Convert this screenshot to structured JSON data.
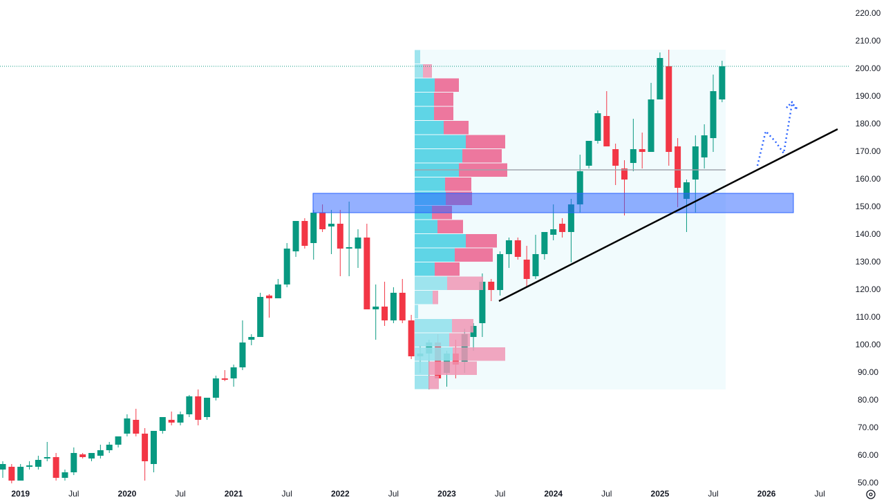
{
  "chart_data": {
    "type": "candlestick",
    "categories": [
      null,
      null,
      "2019",
      null,
      null,
      null,
      null,
      null,
      "Jul",
      null,
      null,
      null,
      null,
      null,
      "2020",
      null,
      null,
      null,
      null,
      null,
      "Jul",
      null,
      null,
      null,
      null,
      null,
      "2021",
      null,
      null,
      null,
      null,
      null,
      "Jul",
      null,
      null,
      null,
      null,
      null,
      "2022",
      null,
      null,
      null,
      null,
      null,
      "Jul",
      null,
      null,
      null,
      null,
      null,
      "2023",
      null,
      null,
      null,
      null,
      null,
      "Jul",
      null,
      null,
      null,
      null,
      null,
      "2024",
      null,
      null,
      null,
      null,
      null,
      "Jul",
      null,
      null,
      null,
      null,
      null,
      "2025",
      null,
      null,
      null,
      null,
      null,
      "Jul",
      null,
      null,
      null,
      null,
      null,
      "2026",
      null,
      null,
      null,
      null,
      null,
      "Jul",
      null,
      null
    ],
    "open": [
      55,
      56,
      51,
      56,
      56,
      59,
      59.5,
      52,
      54,
      60.5,
      59,
      60,
      62,
      64,
      68,
      73,
      68,
      57,
      69,
      73,
      72,
      75,
      81.5,
      74,
      81,
      88,
      88,
      92,
      102,
      103,
      118,
      117,
      122,
      134,
      145,
      137,
      148,
      143,
      144,
      135,
      135,
      139,
      113,
      114,
      109,
      119,
      109,
      96,
      97,
      101,
      90,
      97,
      94,
      103,
      108,
      123,
      120,
      133,
      138,
      131,
      125,
      133,
      140,
      144,
      141,
      151,
      165,
      174,
      183,
      171,
      164,
      166,
      171,
      170,
      189,
      201,
      172,
      153,
      160,
      168,
      175,
      189,
      null,
      null,
      null,
      null,
      null,
      null,
      null,
      null,
      null,
      null,
      null,
      null,
      null
    ],
    "high": [
      58,
      57,
      57,
      58,
      60,
      65,
      61,
      55,
      63,
      61,
      61,
      64,
      65,
      67,
      75,
      77,
      70,
      69,
      74,
      76,
      76,
      82,
      84,
      81,
      89,
      91,
      93,
      109,
      104,
      119,
      118.5,
      124,
      137,
      145,
      146,
      149,
      151,
      149,
      149,
      152,
      142,
      144,
      122,
      123,
      121,
      124,
      111,
      100,
      102,
      104,
      98,
      102,
      106,
      108,
      126,
      124,
      134,
      139,
      139,
      136,
      140,
      141,
      151,
      146,
      153,
      169,
      174,
      185,
      192,
      173,
      167,
      182,
      177,
      195,
      206,
      207,
      175,
      160,
      176,
      180,
      198,
      203,
      null,
      null,
      null,
      null,
      null,
      null,
      null,
      null,
      null,
      null,
      null,
      null,
      null
    ],
    "low": [
      52,
      50,
      51,
      55,
      55,
      58,
      51,
      51,
      53,
      59,
      58,
      59,
      61,
      63,
      67,
      67,
      51,
      54,
      68,
      71,
      71,
      74,
      71,
      73,
      80,
      87,
      85,
      91,
      100,
      103,
      110,
      117,
      121,
      132,
      135,
      131,
      141,
      133,
      125,
      125,
      128,
      113,
      102,
      107,
      108,
      108,
      95,
      90,
      84,
      88,
      85,
      88,
      90,
      98,
      103,
      116,
      118,
      128,
      131,
      121,
      124,
      131,
      138,
      139,
      130,
      148,
      164,
      173,
      173,
      158,
      147,
      163,
      164,
      170,
      189,
      165,
      150,
      141,
      148,
      164,
      170,
      188,
      null,
      null,
      null,
      null,
      null,
      null,
      null,
      null,
      null,
      null,
      null,
      null,
      null
    ],
    "close": [
      57,
      51,
      56,
      56.5,
      58.5,
      59.5,
      52,
      54,
      61,
      59.5,
      61,
      62,
      64,
      67,
      73.5,
      68,
      58,
      69,
      74,
      72,
      75,
      81.5,
      73,
      81,
      88,
      87.5,
      92,
      101,
      103,
      117.5,
      117,
      122,
      135,
      145,
      136,
      148,
      142,
      144,
      135,
      135.5,
      139,
      113,
      114,
      109,
      119,
      109,
      96,
      97,
      101,
      88,
      97,
      93,
      104,
      107,
      123,
      120,
      133,
      138,
      132,
      124,
      133,
      141,
      142,
      141,
      151,
      163,
      174,
      184,
      172,
      165,
      160,
      171,
      170,
      189,
      204,
      170,
      157,
      159,
      172,
      176,
      192,
      201,
      null,
      null,
      null,
      null,
      null,
      null,
      null,
      null,
      null,
      null,
      null,
      null,
      null
    ],
    "up_color": "#089981",
    "down_color": "#f23645",
    "ylim": [
      50,
      220
    ],
    "yticks": [
      {
        "value": 50,
        "label": "50.00"
      },
      {
        "value": 60,
        "label": "60.00"
      },
      {
        "value": 70,
        "label": "70.00"
      },
      {
        "value": 80,
        "label": "80.00"
      },
      {
        "value": 90,
        "label": "90.00"
      },
      {
        "value": 100,
        "label": "100.00"
      },
      {
        "value": 110,
        "label": "110.00"
      },
      {
        "value": 120,
        "label": "120.00"
      },
      {
        "value": 130,
        "label": "130.00"
      },
      {
        "value": 140,
        "label": "140.00"
      },
      {
        "value": 150,
        "label": "150.00"
      },
      {
        "value": 160,
        "label": "160.00"
      },
      {
        "value": 170,
        "label": "170.00"
      },
      {
        "value": 180,
        "label": "180.00"
      },
      {
        "value": 190,
        "label": "190.00"
      },
      {
        "value": 200,
        "label": "200.00"
      },
      {
        "value": 210,
        "label": "210.00"
      },
      {
        "value": 220,
        "label": "220.00"
      }
    ],
    "volume_profile": {
      "bins": [
        84,
        89.125,
        94.25,
        99.375,
        104.5,
        109.625,
        114.75,
        119.875,
        125,
        130.125,
        135.25,
        140.375,
        145.5,
        150.625,
        155.75,
        160.875,
        166,
        171.125,
        176.25,
        181.375,
        186.5,
        191.625,
        196.75,
        201.875,
        207
      ],
      "up": [
        20,
        20,
        55,
        50,
        54,
        5,
        26,
        47,
        29,
        58,
        74,
        33,
        25,
        45,
        44,
        64,
        69,
        74,
        42,
        28,
        28,
        29,
        12,
        8
      ],
      "down": [
        15,
        70,
        76,
        30,
        31,
        0,
        8,
        52,
        36,
        55,
        45,
        37,
        29,
        38,
        38,
        70,
        57,
        57,
        36,
        28,
        28,
        35,
        13,
        0
      ],
      "value_area": [
        125,
        196.75
      ],
      "poc": 163.5
    },
    "zone": [
      148,
      155
    ],
    "trendline": [
      116,
      178.25
    ]
  }
}
